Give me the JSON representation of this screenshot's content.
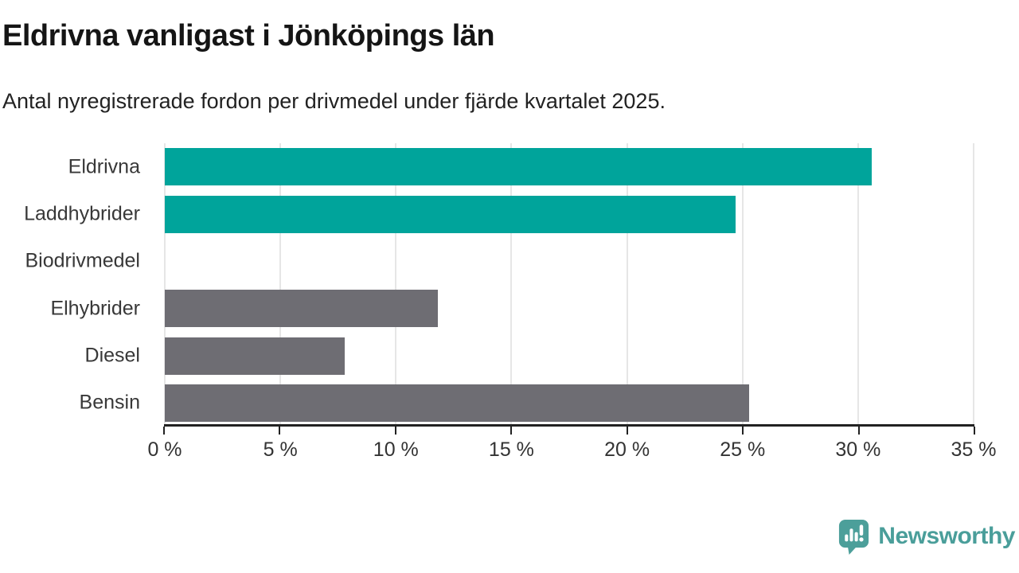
{
  "header": {
    "title": "Eldrivna vanligast i Jönköpings län",
    "subtitle": "Antal nyregistrerade fordon per drivmedel under fjärde kvartalet 2025."
  },
  "chart_data": {
    "type": "bar",
    "orientation": "horizontal",
    "title": "Eldrivna vanligast i Jönköpings län",
    "subtitle": "Antal nyregistrerade fordon per drivmedel under fjärde kvartalet 2025.",
    "categories": [
      "Eldrivna",
      "Laddhybrider",
      "Biodrivmedel",
      "Elhybrider",
      "Diesel",
      "Bensin"
    ],
    "values": [
      30.6,
      24.7,
      0,
      11.8,
      7.8,
      25.3
    ],
    "unit": "%",
    "xlim": [
      0,
      35
    ],
    "x_ticks": [
      0,
      5,
      10,
      15,
      20,
      25,
      30,
      35
    ],
    "x_tick_labels": [
      "0 %",
      "5 %",
      "10 %",
      "15 %",
      "20 %",
      "25 %",
      "30 %",
      "35 %"
    ],
    "bar_colors": [
      "#00a49b",
      "#00a49b",
      "#00a49b",
      "#6e6d73",
      "#6e6d73",
      "#6e6d73"
    ],
    "grid": true,
    "legend": "none"
  },
  "colors": {
    "teal_bar": "#00a49b",
    "gray_bar": "#6e6d73",
    "gridline": "#e6e6e6",
    "axis": "#222222",
    "brand": "#4a9e9a"
  },
  "branding": {
    "logo_text": "Newsworthy",
    "logo_icon": "bar-chart-speech-bubble-icon"
  }
}
